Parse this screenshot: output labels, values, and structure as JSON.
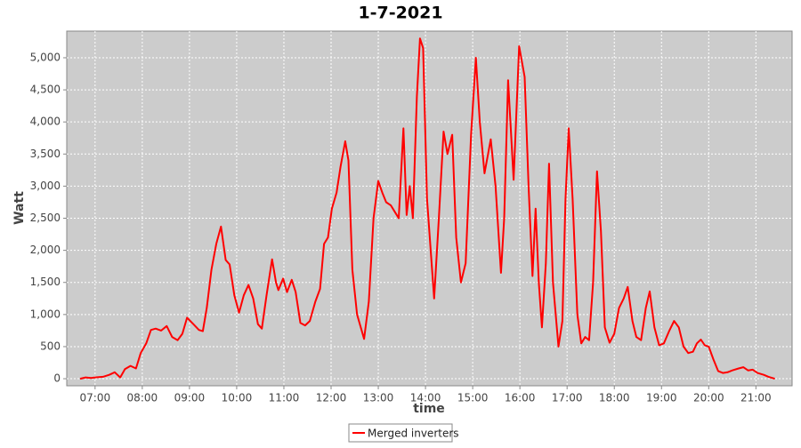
{
  "chart_data": {
    "type": "line",
    "title": "1-7-2021",
    "x_label": "time",
    "y_label": "Watt",
    "xlim": [
      "06:24",
      "21:46"
    ],
    "xticks": [
      "07:00",
      "08:00",
      "09:00",
      "10:00",
      "11:00",
      "12:00",
      "13:00",
      "14:00",
      "15:00",
      "16:00",
      "17:00",
      "18:00",
      "19:00",
      "20:00",
      "21:00"
    ],
    "ylim": [
      -110,
      5415
    ],
    "yticks": [
      0,
      500,
      {
        "value": 1000,
        "label": "1,000"
      },
      {
        "value": 1500,
        "label": "1,500"
      },
      {
        "value": 2000,
        "label": "2,000"
      },
      {
        "value": 2500,
        "label": "2,500"
      },
      {
        "value": 3000,
        "label": "3,000"
      },
      {
        "value": 3500,
        "label": "3,500"
      },
      {
        "value": 4000,
        "label": "4,000"
      },
      {
        "value": 4500,
        "label": "4,500"
      },
      {
        "value": 5000,
        "label": "5,000"
      }
    ],
    "grid": true,
    "legend": "bottom",
    "x": [
      "06:41",
      "06:48",
      "06:55",
      "07:00",
      "07:10",
      "07:18",
      "07:25",
      "07:32",
      "07:38",
      "07:45",
      "07:52",
      "07:58",
      "08:05",
      "08:11",
      "08:17",
      "08:24",
      "08:31",
      "08:38",
      "08:45",
      "08:51",
      "08:57",
      "09:05",
      "09:12",
      "09:17",
      "09:22",
      "09:28",
      "09:34",
      "09:40",
      "09:46",
      "09:51",
      "09:57",
      "10:03",
      "10:09",
      "10:15",
      "10:21",
      "10:27",
      "10:32",
      "10:38",
      "10:45",
      "10:50",
      "10:53",
      "10:59",
      "11:04",
      "11:10",
      "11:15",
      "11:21",
      "11:27",
      "11:33",
      "11:40",
      "11:46",
      "11:51",
      "11:56",
      "12:01",
      "12:07",
      "12:12",
      "12:18",
      "12:22",
      "12:27",
      "12:33",
      "12:42",
      "12:48",
      "12:54",
      "13:00",
      "13:05",
      "13:10",
      "13:16",
      "13:21",
      "13:26",
      "13:32",
      "13:36",
      "13:40",
      "13:44",
      "13:49",
      "13:53",
      "13:57",
      "14:02",
      "14:11",
      "14:17",
      "14:23",
      "14:28",
      "14:34",
      "14:39",
      "14:45",
      "14:51",
      "14:58",
      "15:04",
      "15:09",
      "15:15",
      "15:23",
      "15:29",
      "15:36",
      "15:40",
      "15:45",
      "15:52",
      "15:59",
      "16:06",
      "16:11",
      "16:16",
      "16:20",
      "16:24",
      "16:28",
      "16:33",
      "16:37",
      "16:42",
      "16:49",
      "16:54",
      "16:58",
      "17:02",
      "17:07",
      "17:13",
      "17:18",
      "17:23",
      "17:28",
      "17:33",
      "17:38",
      "17:43",
      "17:48",
      "17:54",
      "18:00",
      "18:06",
      "18:12",
      "18:17",
      "18:23",
      "18:28",
      "18:34",
      "18:40",
      "18:45",
      "18:51",
      "18:57",
      "19:03",
      "19:10",
      "19:16",
      "19:22",
      "19:28",
      "19:34",
      "19:40",
      "19:45",
      "19:50",
      "19:55",
      "20:00",
      "20:06",
      "20:12",
      "20:18",
      "20:24",
      "20:30",
      "20:38",
      "20:44",
      "20:50",
      "20:56",
      "21:02",
      "21:10",
      "21:16",
      "21:24"
    ],
    "series": [
      {
        "name": "Merged inverters",
        "color": "#ff0000",
        "values": [
          0,
          20,
          10,
          20,
          30,
          60,
          100,
          20,
          150,
          200,
          160,
          400,
          550,
          760,
          780,
          750,
          820,
          650,
          600,
          700,
          950,
          850,
          760,
          740,
          1100,
          1700,
          2100,
          2370,
          1850,
          1780,
          1300,
          1030,
          1300,
          1460,
          1250,
          850,
          780,
          1300,
          1860,
          1500,
          1380,
          1560,
          1350,
          1540,
          1350,
          870,
          830,
          900,
          1200,
          1400,
          2100,
          2200,
          2650,
          2900,
          3300,
          3700,
          3400,
          1700,
          1000,
          620,
          1200,
          2500,
          3080,
          2900,
          2750,
          2700,
          2600,
          2500,
          3900,
          2550,
          3000,
          2500,
          4400,
          5300,
          5150,
          2800,
          1250,
          2500,
          3850,
          3500,
          3800,
          2200,
          1500,
          1800,
          3800,
          5000,
          4000,
          3200,
          3730,
          3000,
          1650,
          2500,
          4650,
          3100,
          5180,
          4700,
          3000,
          1600,
          2650,
          1500,
          800,
          1800,
          3350,
          1500,
          500,
          900,
          2800,
          3900,
          2800,
          1000,
          550,
          650,
          600,
          1500,
          3230,
          2300,
          800,
          560,
          700,
          1100,
          1250,
          1430,
          900,
          650,
          600,
          1100,
          1360,
          800,
          520,
          550,
          750,
          900,
          800,
          500,
          400,
          420,
          550,
          610,
          520,
          500,
          300,
          120,
          90,
          100,
          130,
          160,
          180,
          130,
          140,
          90,
          60,
          30,
          0
        ]
      }
    ]
  }
}
